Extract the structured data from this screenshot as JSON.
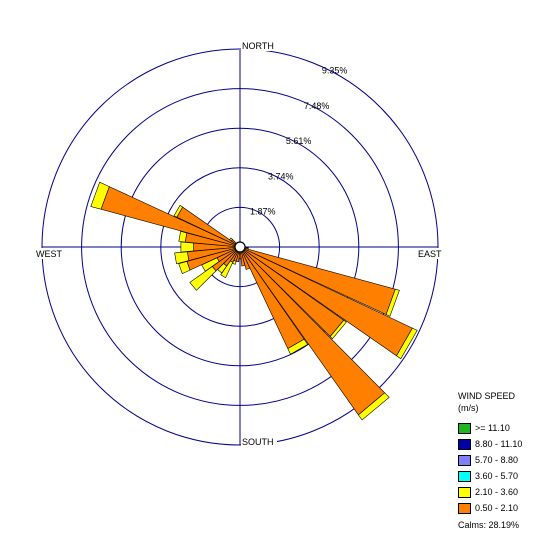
{
  "chart_data": {
    "type": "wind-rose",
    "directions": [
      {
        "bearing": 0,
        "values": [
          0.0,
          0.0
        ]
      },
      {
        "bearing": 22.5,
        "values": [
          0.0,
          0.0
        ]
      },
      {
        "bearing": 45,
        "values": [
          0.0,
          0.0
        ]
      },
      {
        "bearing": 67.5,
        "values": [
          0.0,
          0.0
        ]
      },
      {
        "bearing": 90,
        "values": [
          0.0,
          0.0
        ]
      },
      {
        "bearing": 100,
        "values": [
          0.35,
          0.05
        ]
      },
      {
        "bearing": 110,
        "values": [
          7.6,
          0.2
        ]
      },
      {
        "bearing": 120,
        "values": [
          9.0,
          0.25
        ]
      },
      {
        "bearing": 130,
        "values": [
          6.0,
          0.15
        ]
      },
      {
        "bearing": 140,
        "values": [
          9.7,
          0.3
        ]
      },
      {
        "bearing": 150,
        "values": [
          5.3,
          0.3
        ]
      },
      {
        "bearing": 160,
        "values": [
          1.1,
          0.0
        ]
      },
      {
        "bearing": 170,
        "values": [
          0.9,
          0.0
        ]
      },
      {
        "bearing": 180,
        "values": [
          0.55,
          0.0
        ]
      },
      {
        "bearing": 190,
        "values": [
          0.7,
          0.0
        ]
      },
      {
        "bearing": 200,
        "values": [
          0.7,
          0.15
        ]
      },
      {
        "bearing": 210,
        "values": [
          0.8,
          0.8
        ]
      },
      {
        "bearing": 220,
        "values": [
          1.1,
          0.4
        ]
      },
      {
        "bearing": 230,
        "values": [
          1.6,
          1.3
        ]
      },
      {
        "bearing": 240,
        "values": [
          1.2,
          0.8
        ]
      },
      {
        "bearing": 250,
        "values": [
          2.6,
          0.4
        ]
      },
      {
        "bearing": 260,
        "values": [
          2.5,
          0.6
        ]
      },
      {
        "bearing": 270,
        "values": [
          2.2,
          0.6
        ]
      },
      {
        "bearing": 280,
        "values": [
          2.6,
          0.3
        ]
      },
      {
        "bearing": 290,
        "values": [
          6.8,
          0.5
        ]
      },
      {
        "bearing": 300,
        "values": [
          3.3,
          0.15
        ]
      },
      {
        "bearing": 310,
        "values": [
          0.5,
          0.1
        ]
      }
    ],
    "speed_classes": [
      {
        "label": ">= 11.10",
        "color": "#1fb51f"
      },
      {
        "label": "8.80 - 11.10",
        "color": "#0000a8"
      },
      {
        "label": "5.70 - 8.80",
        "color": "#7f7fff"
      },
      {
        "label": "3.60 - 5.70",
        "color": "#00ffff"
      },
      {
        "label": "2.10 - 3.60",
        "color": "#ffff00"
      },
      {
        "label": "0.50 - 2.10",
        "color": "#ff7f00"
      }
    ],
    "stack_order": [
      "0.50 - 2.10",
      "2.10 - 3.60"
    ],
    "rings": [
      "1.87%",
      "3.74%",
      "5.61%",
      "7.48%",
      "9.35%"
    ],
    "ring_max": 9.35,
    "directions_labels": {
      "north": "NORTH",
      "south": "SOUTH",
      "east": "EAST",
      "west": "WEST"
    },
    "legend": {
      "title": "WIND SPEED",
      "unit": "(m/s)",
      "calms": "Calms: 28.19%"
    }
  }
}
